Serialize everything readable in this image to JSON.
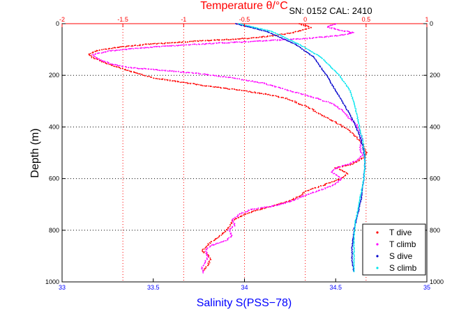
{
  "chart_data": {
    "type": "scatter",
    "title": "Temperature θ/°C",
    "annotation": "SN: 0152  CAL: 2410",
    "xlabel": "Salinity S(PSS−78)",
    "ylabel": "Depth (m)",
    "x_bottom": {
      "label": "Salinity S(PSS−78)",
      "range": [
        33,
        35
      ],
      "ticks": [
        "33",
        "33.5",
        "34",
        "34.5",
        "35"
      ],
      "color": "#0000ff"
    },
    "x_top": {
      "label": "Temperature θ/°C",
      "range": [
        -2,
        1
      ],
      "ticks": [
        "-2",
        "-1.5",
        "-1",
        "-0.5",
        "0",
        "0.5",
        "1"
      ],
      "color": "#ff0000"
    },
    "y_left": {
      "label": "Depth (m)",
      "range": [
        0,
        1000
      ],
      "reversed": true,
      "ticks": [
        "0",
        "200",
        "400",
        "600",
        "800",
        "1000"
      ]
    },
    "y_right": {
      "range": [
        0,
        1000
      ],
      "reversed": true,
      "ticks": [
        "0",
        "200",
        "400",
        "600",
        "800",
        "1000"
      ]
    },
    "grid": true,
    "legend_position": "bottom-right",
    "series": [
      {
        "name": "T dive",
        "axis": "temperature",
        "color": "#ff0000",
        "marker": "dot",
        "points": [
          [
            -0.05,
            0
          ],
          [
            0.05,
            15
          ],
          [
            -0.1,
            35
          ],
          [
            -0.4,
            55
          ],
          [
            -0.9,
            68
          ],
          [
            -1.3,
            80
          ],
          [
            -1.55,
            92
          ],
          [
            -1.72,
            105
          ],
          [
            -1.78,
            118
          ],
          [
            -1.75,
            130
          ],
          [
            -1.68,
            145
          ],
          [
            -1.6,
            160
          ],
          [
            -1.5,
            175
          ],
          [
            -1.4,
            190
          ],
          [
            -1.25,
            210
          ],
          [
            -1.0,
            228
          ],
          [
            -0.75,
            245
          ],
          [
            -0.5,
            260
          ],
          [
            -0.3,
            275
          ],
          [
            -0.15,
            290
          ],
          [
            -0.05,
            310
          ],
          [
            0.05,
            330
          ],
          [
            0.12,
            350
          ],
          [
            0.2,
            370
          ],
          [
            0.28,
            390
          ],
          [
            0.35,
            410
          ],
          [
            0.42,
            440
          ],
          [
            0.48,
            470
          ],
          [
            0.5,
            500
          ],
          [
            0.48,
            520
          ],
          [
            0.38,
            545
          ],
          [
            0.25,
            558
          ],
          [
            0.3,
            568
          ],
          [
            0.35,
            580
          ],
          [
            0.3,
            600
          ],
          [
            0.15,
            625
          ],
          [
            0.0,
            650
          ],
          [
            -0.05,
            670
          ],
          [
            -0.15,
            690
          ],
          [
            -0.3,
            710
          ],
          [
            -0.45,
            730
          ],
          [
            -0.55,
            750
          ],
          [
            -0.6,
            765
          ],
          [
            -0.62,
            785
          ],
          [
            -0.66,
            805
          ],
          [
            -0.72,
            830
          ],
          [
            -0.78,
            848
          ],
          [
            -0.82,
            865
          ],
          [
            -0.85,
            880
          ],
          [
            -0.8,
            895
          ],
          [
            -0.78,
            915
          ],
          [
            -0.8,
            935
          ],
          [
            -0.84,
            955
          ]
        ]
      },
      {
        "name": "T climb",
        "axis": "temperature",
        "color": "#ff00ff",
        "marker": "dot",
        "points": [
          [
            0.25,
            0
          ],
          [
            0.18,
            12
          ],
          [
            0.28,
            25
          ],
          [
            0.4,
            35
          ],
          [
            0.3,
            45
          ],
          [
            0.0,
            58
          ],
          [
            -0.4,
            68
          ],
          [
            -0.9,
            80
          ],
          [
            -1.3,
            92
          ],
          [
            -1.6,
            105
          ],
          [
            -1.75,
            120
          ],
          [
            -1.7,
            138
          ],
          [
            -1.6,
            155
          ],
          [
            -1.45,
            170
          ],
          [
            -1.2,
            180
          ],
          [
            -0.9,
            192
          ],
          [
            -0.6,
            210
          ],
          [
            -0.35,
            230
          ],
          [
            -0.2,
            250
          ],
          [
            -0.05,
            270
          ],
          [
            0.1,
            290
          ],
          [
            0.22,
            310
          ],
          [
            0.3,
            335
          ],
          [
            0.35,
            360
          ],
          [
            0.42,
            390
          ],
          [
            0.45,
            420
          ],
          [
            0.47,
            450
          ],
          [
            0.45,
            480
          ],
          [
            0.47,
            510
          ],
          [
            0.42,
            530
          ],
          [
            0.35,
            545
          ],
          [
            0.25,
            560
          ],
          [
            0.22,
            575
          ],
          [
            0.3,
            600
          ],
          [
            0.25,
            620
          ],
          [
            0.15,
            640
          ],
          [
            0.0,
            665
          ],
          [
            -0.1,
            685
          ],
          [
            -0.25,
            705
          ],
          [
            -0.45,
            720
          ],
          [
            -0.55,
            740
          ],
          [
            -0.6,
            760
          ],
          [
            -0.58,
            780
          ],
          [
            -0.63,
            800
          ],
          [
            -0.6,
            820
          ],
          [
            -0.65,
            840
          ],
          [
            -0.78,
            860
          ],
          [
            -0.82,
            880
          ],
          [
            -0.8,
            900
          ],
          [
            -0.82,
            920
          ],
          [
            -0.85,
            945
          ],
          [
            -0.84,
            965
          ]
        ]
      },
      {
        "name": "S dive",
        "axis": "salinity",
        "color": "#0000cc",
        "marker": "dot",
        "points": [
          [
            33.95,
            0
          ],
          [
            34.12,
            30
          ],
          [
            34.28,
            80
          ],
          [
            34.38,
            130
          ],
          [
            34.45,
            200
          ],
          [
            34.5,
            260
          ],
          [
            34.56,
            330
          ],
          [
            34.6,
            380
          ],
          [
            34.63,
            430
          ],
          [
            34.65,
            480
          ],
          [
            34.66,
            520
          ],
          [
            34.66,
            560
          ],
          [
            34.65,
            620
          ],
          [
            34.64,
            680
          ],
          [
            34.62,
            740
          ],
          [
            34.6,
            800
          ],
          [
            34.59,
            870
          ],
          [
            34.59,
            920
          ],
          [
            34.6,
            960
          ]
        ]
      },
      {
        "name": "S climb",
        "axis": "salinity",
        "color": "#00e5ee",
        "marker": "dot",
        "points": [
          [
            33.97,
            0
          ],
          [
            34.15,
            30
          ],
          [
            34.3,
            80
          ],
          [
            34.42,
            130
          ],
          [
            34.52,
            200
          ],
          [
            34.58,
            260
          ],
          [
            34.61,
            330
          ],
          [
            34.63,
            400
          ],
          [
            34.65,
            460
          ],
          [
            34.66,
            510
          ],
          [
            34.66,
            560
          ],
          [
            34.65,
            620
          ],
          [
            34.63,
            690
          ],
          [
            34.61,
            760
          ],
          [
            34.6,
            820
          ],
          [
            34.6,
            880
          ],
          [
            34.6,
            960
          ]
        ]
      }
    ]
  },
  "legend": {
    "items": [
      {
        "label": "T dive",
        "color": "#ff0000"
      },
      {
        "label": "T climb",
        "color": "#ff00ff"
      },
      {
        "label": "S dive",
        "color": "#0000cc"
      },
      {
        "label": "S climb",
        "color": "#00e5ee"
      }
    ]
  }
}
